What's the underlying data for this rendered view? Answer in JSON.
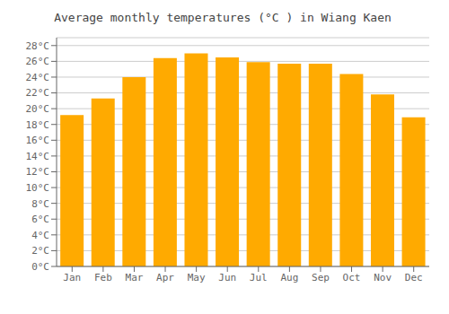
{
  "chart_data": {
    "type": "bar",
    "title": "Average monthly temperatures (°C ) in Wiang Kaen",
    "categories": [
      "Jan",
      "Feb",
      "Mar",
      "Apr",
      "May",
      "Jun",
      "Jul",
      "Aug",
      "Sep",
      "Oct",
      "Nov",
      "Dec"
    ],
    "values": [
      19.2,
      21.3,
      24.0,
      26.4,
      27.0,
      26.5,
      25.9,
      25.7,
      25.7,
      24.4,
      21.8,
      18.9
    ],
    "color": "#FFAA00",
    "ylim": [
      0,
      29
    ],
    "yticks": [
      {
        "value": 0,
        "label": "0°C"
      },
      {
        "value": 2,
        "label": "2°C"
      },
      {
        "value": 4,
        "label": "4°C"
      },
      {
        "value": 6,
        "label": "6°C"
      },
      {
        "value": 8,
        "label": "8°C"
      },
      {
        "value": 10,
        "label": "10°C"
      },
      {
        "value": 12,
        "label": "12°C"
      },
      {
        "value": 14,
        "label": "14°C"
      },
      {
        "value": 16,
        "label": "16°C"
      },
      {
        "value": 18,
        "label": "18°C"
      },
      {
        "value": 20,
        "label": "20°C"
      },
      {
        "value": 22,
        "label": "22°C"
      },
      {
        "value": 24,
        "label": "24°C"
      },
      {
        "value": 26,
        "label": "26°C"
      },
      {
        "value": 28,
        "label": "28°C"
      }
    ],
    "grid": true
  }
}
